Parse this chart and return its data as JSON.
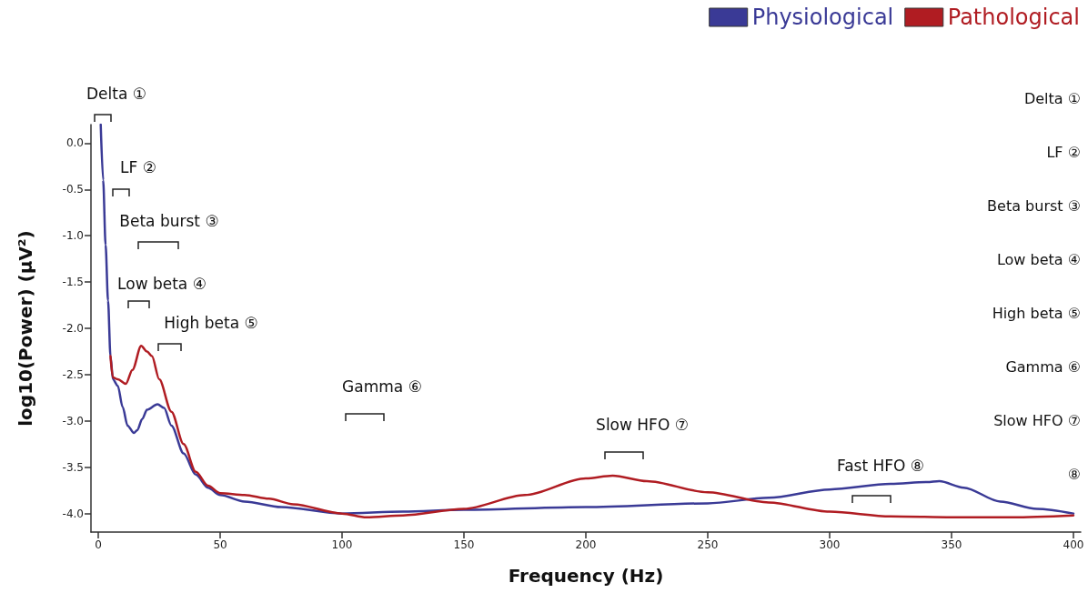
{
  "chart_data": {
    "type": "line",
    "xlabel": "Frequency (Hz)",
    "ylabel": "log10(Power) (µV²)",
    "xlim": [
      -3,
      403
    ],
    "xticks": [
      0,
      50,
      100,
      150,
      200,
      250,
      300,
      350,
      400
    ],
    "ylim": [
      -4.2,
      0.2
    ],
    "yticks": [
      {
        "value": 0,
        "label": "0.0"
      },
      {
        "value": -0.5,
        "label": "-0.5"
      },
      {
        "value": -1,
        "label": "-1.0"
      },
      {
        "value": -1.5,
        "label": "-1.5"
      },
      {
        "value": -2,
        "label": "-2.0"
      },
      {
        "value": -2.5,
        "label": "-2.5"
      },
      {
        "value": -3,
        "label": "-3.0"
      },
      {
        "value": -3.5,
        "label": "-3.5"
      },
      {
        "value": -4,
        "label": "-4.0"
      }
    ],
    "grid": false,
    "legend": "top right",
    "marker": "none",
    "line_style": "solid",
    "series": [
      {
        "name": "Physiological",
        "color": "#3a3a96",
        "x": [
          1,
          2,
          3,
          4,
          5,
          6,
          8,
          10,
          12,
          14.6,
          16,
          18,
          20,
          24.3,
          27,
          30,
          35,
          40,
          45,
          50,
          60,
          75,
          100,
          125,
          150,
          200,
          250,
          275,
          300,
          325,
          340,
          345,
          355,
          370,
          385,
          400
        ],
        "values": [
          0.2,
          -0.4,
          -1.1,
          -1.7,
          -2.3,
          -2.55,
          -2.62,
          -2.85,
          -3.05,
          -3.13,
          -3.1,
          -2.98,
          -2.88,
          -2.82,
          -2.86,
          -3.05,
          -3.35,
          -3.58,
          -3.72,
          -3.8,
          -3.87,
          -3.93,
          -4.0,
          -3.98,
          -3.96,
          -3.93,
          -3.89,
          -3.83,
          -3.74,
          -3.68,
          -3.66,
          -3.65,
          -3.72,
          -3.87,
          -3.95,
          -4.0
        ]
      },
      {
        "name": "Pathological",
        "color": "#b01c22",
        "x": [
          5,
          6,
          8,
          11.3,
          14,
          17.6,
          20,
          22,
          25,
          30,
          35,
          40,
          45,
          50,
          60,
          70,
          80,
          100,
          110,
          125,
          150,
          175,
          200,
          211,
          225,
          250,
          275,
          300,
          325,
          350,
          375,
          400
        ],
        "values": [
          -2.3,
          -2.53,
          -2.55,
          -2.6,
          -2.45,
          -2.19,
          -2.25,
          -2.3,
          -2.55,
          -2.9,
          -3.25,
          -3.55,
          -3.7,
          -3.78,
          -3.8,
          -3.84,
          -3.9,
          -4.0,
          -4.04,
          -4.02,
          -3.95,
          -3.8,
          -3.62,
          -3.59,
          -3.65,
          -3.77,
          -3.88,
          -3.98,
          -4.03,
          -4.04,
          -4.04,
          -4.02
        ]
      }
    ],
    "annotations": [
      "Delta ①",
      "LF ②",
      "Beta burst ③",
      "Low beta ④",
      "High beta ⑤",
      "Gamma ⑥",
      "Slow HFO ⑦",
      "Fast HFO ⑧",
      "Delta ①",
      "LF ②",
      "Beta burst ③",
      "Low beta ④",
      "High beta ⑤",
      "Gamma ⑥",
      "Slow HFO ⑦",
      "⑧"
    ]
  }
}
